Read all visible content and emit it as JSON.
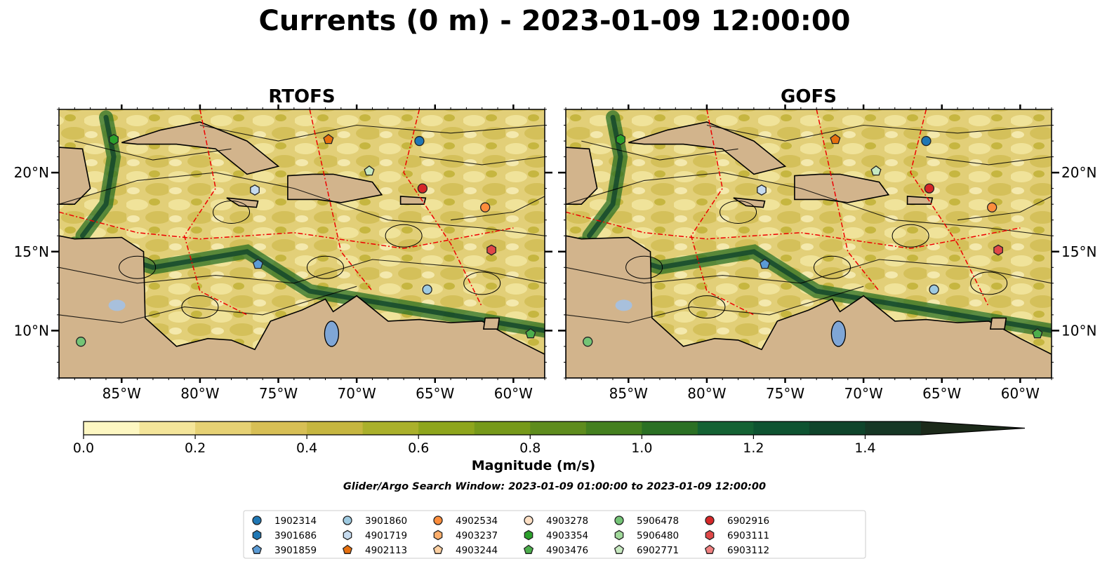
{
  "figure": {
    "title": "Currents (0 m) - 2023-01-09 12:00:00",
    "search_window": "Glider/Argo Search Window: 2023-01-09 01:00:00 to 2023-01-09 12:00:00"
  },
  "chart_data": [
    {
      "type": "heatmap",
      "title": "RTOFS",
      "xlim": [
        -89,
        -58
      ],
      "ylim": [
        7,
        24
      ],
      "xticks": [
        -85,
        -80,
        -75,
        -70,
        -65,
        -60
      ],
      "xtick_labels": [
        "85°W",
        "80°W",
        "75°W",
        "70°W",
        "65°W",
        "60°W"
      ],
      "yticks": [
        10,
        15,
        20
      ],
      "ytick_labels": [
        "10°N",
        "15°N",
        "20°N"
      ],
      "floats": [
        {
          "id": "1902314",
          "lon": -66.0,
          "lat": 22.0
        },
        {
          "id": "3901859",
          "lon": -76.3,
          "lat": 14.2
        },
        {
          "id": "3901860",
          "lon": -65.5,
          "lat": 12.6
        },
        {
          "id": "4901719",
          "lon": -76.5,
          "lat": 18.9
        },
        {
          "id": "4902113",
          "lon": -71.8,
          "lat": 22.1
        },
        {
          "id": "4902534",
          "lon": -61.8,
          "lat": 17.8
        },
        {
          "id": "4903476",
          "lon": -58.9,
          "lat": 9.8
        },
        {
          "id": "4903354",
          "lon": -85.5,
          "lat": 22.1
        },
        {
          "id": "5906478",
          "lon": -87.6,
          "lat": 9.3
        },
        {
          "id": "6902771",
          "lon": -69.2,
          "lat": 20.1
        },
        {
          "id": "6902916",
          "lon": -65.8,
          "lat": 19.0
        },
        {
          "id": "6903111",
          "lon": -61.4,
          "lat": 15.1
        }
      ]
    },
    {
      "type": "heatmap",
      "title": "GOFS",
      "xlim": [
        -89,
        -58
      ],
      "ylim": [
        7,
        24
      ],
      "xticks": [
        -85,
        -80,
        -75,
        -70,
        -65,
        -60
      ],
      "xtick_labels": [
        "85°W",
        "80°W",
        "75°W",
        "70°W",
        "65°W",
        "60°W"
      ],
      "yticks": [
        10,
        15,
        20
      ],
      "ytick_labels": [
        "10°N",
        "15°N",
        "20°N"
      ],
      "floats": [
        {
          "id": "1902314",
          "lon": -66.0,
          "lat": 22.0
        },
        {
          "id": "3901859",
          "lon": -76.3,
          "lat": 14.2
        },
        {
          "id": "3901860",
          "lon": -65.5,
          "lat": 12.6
        },
        {
          "id": "4901719",
          "lon": -76.5,
          "lat": 18.9
        },
        {
          "id": "4902113",
          "lon": -71.8,
          "lat": 22.1
        },
        {
          "id": "4902534",
          "lon": -61.8,
          "lat": 17.8
        },
        {
          "id": "4903476",
          "lon": -58.9,
          "lat": 9.8
        },
        {
          "id": "4903354",
          "lon": -85.5,
          "lat": 22.1
        },
        {
          "id": "5906478",
          "lon": -87.6,
          "lat": 9.3
        },
        {
          "id": "6902771",
          "lon": -69.2,
          "lat": 20.1
        },
        {
          "id": "6902916",
          "lon": -65.8,
          "lat": 19.0
        },
        {
          "id": "6903111",
          "lon": -61.4,
          "lat": 15.1
        }
      ]
    }
  ],
  "colorbar": {
    "label": "Magnitude (m/s)",
    "min": 0.0,
    "max": 1.5,
    "step": 0.1,
    "ticks": [
      0.0,
      0.2,
      0.4,
      0.6,
      0.8,
      1.0,
      1.2,
      1.4
    ],
    "tick_labels": [
      "0.0",
      "0.2",
      "0.4",
      "0.6",
      "0.8",
      "1.0",
      "1.2",
      "1.4"
    ],
    "extend": "max",
    "colors": [
      "#fdf7c2",
      "#f4e59a",
      "#e6d174",
      "#d7bf55",
      "#c6b640",
      "#aab02b",
      "#8ea51c",
      "#76991a",
      "#5e8c1d",
      "#44801f",
      "#2b7024",
      "#146233",
      "#0e5331",
      "#0f442b",
      "#163725",
      "#1c2a1a"
    ]
  },
  "legend": {
    "entries": [
      {
        "id": "1902314",
        "marker": "circle",
        "color": "#1f77b4"
      },
      {
        "id": "3901686",
        "marker": "hexagon",
        "color": "#1f77b4"
      },
      {
        "id": "3901859",
        "marker": "pentagon",
        "color": "#5b9bd5"
      },
      {
        "id": "3901860",
        "marker": "circle",
        "color": "#9ecae1"
      },
      {
        "id": "4901719",
        "marker": "hexagon",
        "color": "#c6dbef"
      },
      {
        "id": "4902113",
        "marker": "pentagon",
        "color": "#e6700f"
      },
      {
        "id": "4902534",
        "marker": "circle",
        "color": "#fd8d3c"
      },
      {
        "id": "4903237",
        "marker": "hexagon",
        "color": "#fdae6b"
      },
      {
        "id": "4903244",
        "marker": "pentagon",
        "color": "#fdd0a2"
      },
      {
        "id": "4903278",
        "marker": "circle",
        "color": "#fde0c5"
      },
      {
        "id": "4903354",
        "marker": "hexagon",
        "color": "#2ca02c"
      },
      {
        "id": "4903476",
        "marker": "pentagon",
        "color": "#4cae4c"
      },
      {
        "id": "5906478",
        "marker": "circle",
        "color": "#74c476"
      },
      {
        "id": "5906480",
        "marker": "hexagon",
        "color": "#a1d99b"
      },
      {
        "id": "6902771",
        "marker": "pentagon",
        "color": "#c7e9c0"
      },
      {
        "id": "6902916",
        "marker": "circle",
        "color": "#d62728"
      },
      {
        "id": "6903111",
        "marker": "hexagon",
        "color": "#e04848"
      },
      {
        "id": "6903112",
        "marker": "pentagon",
        "color": "#f08080"
      }
    ]
  }
}
